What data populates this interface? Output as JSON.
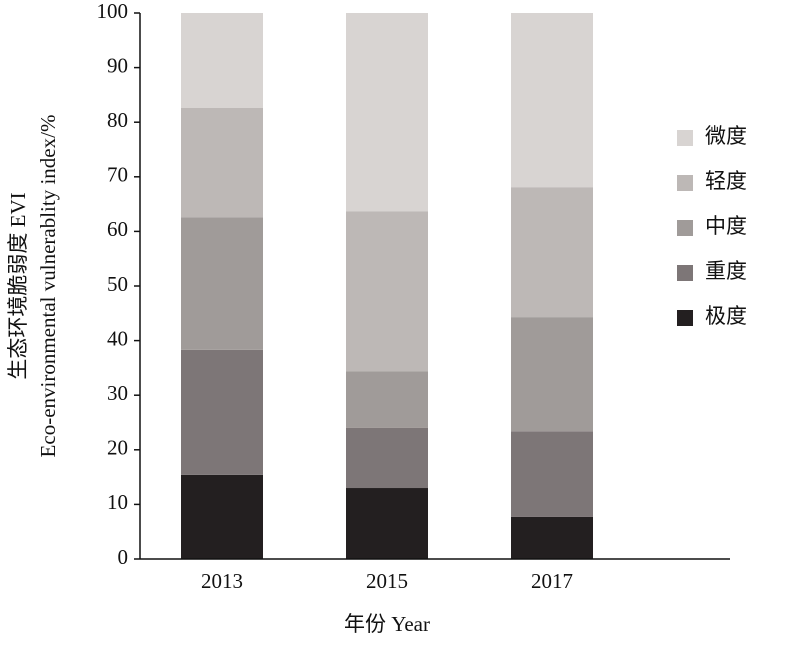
{
  "chart_data": {
    "type": "stacked_bar",
    "categories": [
      "2013",
      "2015",
      "2017"
    ],
    "series": [
      {
        "name": "极度",
        "color": "#231f20",
        "values": [
          15.4,
          13.0,
          7.7
        ]
      },
      {
        "name": "重度",
        "color": "#7d7677",
        "values": [
          22.9,
          11.0,
          15.7
        ]
      },
      {
        "name": "中度",
        "color": "#a09b99",
        "values": [
          24.3,
          10.4,
          20.9
        ]
      },
      {
        "name": "轻度",
        "color": "#bdb8b6",
        "values": [
          20.0,
          29.3,
          23.8
        ]
      },
      {
        "name": "微度",
        "color": "#d8d4d2",
        "values": [
          17.4,
          36.3,
          31.9
        ]
      }
    ],
    "ylim": [
      0,
      100
    ],
    "yticks": [
      0,
      10,
      20,
      30,
      40,
      50,
      60,
      70,
      80,
      90,
      100
    ],
    "ylabel": [
      "生态环境脆弱度 EVI",
      "Eco-environmental vulnerablity index/%"
    ],
    "xlabel": "年份 Year"
  }
}
